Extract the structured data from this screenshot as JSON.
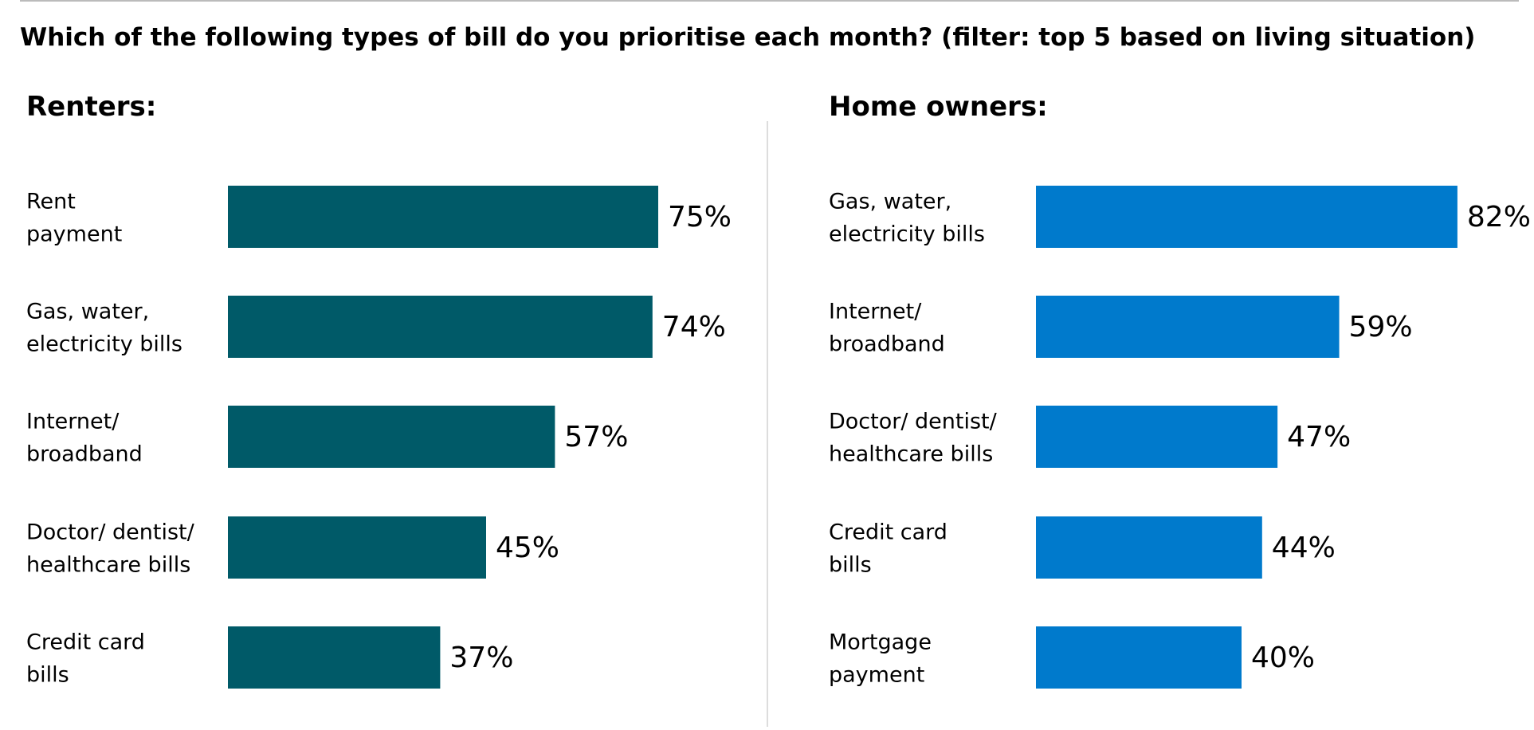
{
  "title": "Which of the following types of bill do you prioritise each month? (filter: top 5 based on living situation)",
  "chart_data": [
    {
      "type": "bar",
      "orientation": "horizontal",
      "title": "Renters:",
      "color": "#005a68",
      "categories": [
        "Rent\npayment",
        "Gas, water,\nelectricity bills",
        "Internet/\nbroadband",
        "Doctor/ dentist/\nhealthcare bills",
        "Credit card\nbills"
      ],
      "values": [
        75,
        74,
        57,
        45,
        37
      ],
      "value_labels": [
        "75%",
        "74%",
        "57%",
        "45%",
        "37%"
      ],
      "xlim": [
        0,
        100
      ]
    },
    {
      "type": "bar",
      "orientation": "horizontal",
      "title": "Home owners:",
      "color": "#007acc",
      "categories": [
        "Gas, water,\nelectricity bills",
        "Internet/\nbroadband",
        "Doctor/ dentist/\nhealthcare bills",
        "Credit card\nbills",
        "Mortgage\npayment"
      ],
      "values": [
        82,
        59,
        47,
        44,
        40
      ],
      "value_labels": [
        "82%",
        "59%",
        "47%",
        "44%",
        "40%"
      ],
      "xlim": [
        0,
        100
      ]
    }
  ]
}
